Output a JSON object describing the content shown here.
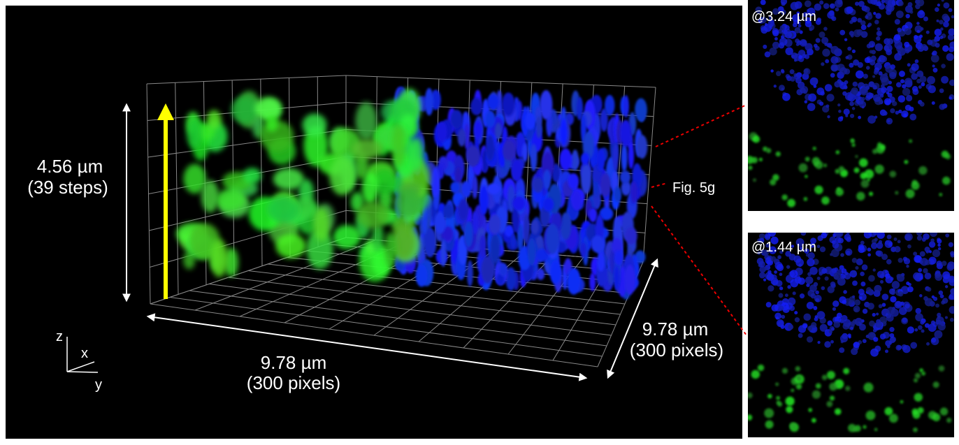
{
  "volume": {
    "height_label": "4.56 µm",
    "height_steps": "(39 steps)",
    "width_label": "9.78 µm",
    "width_pixels": "(300 pixels)",
    "depth_label": "9.78 µm",
    "depth_pixels": "(300 pixels)",
    "axes": {
      "z": "z",
      "x": "x",
      "y": "y"
    },
    "figure_ref": "Fig. 5g"
  },
  "slices": [
    {
      "label": "@3.24 µm"
    },
    {
      "label": "@1.44 µm"
    }
  ]
}
